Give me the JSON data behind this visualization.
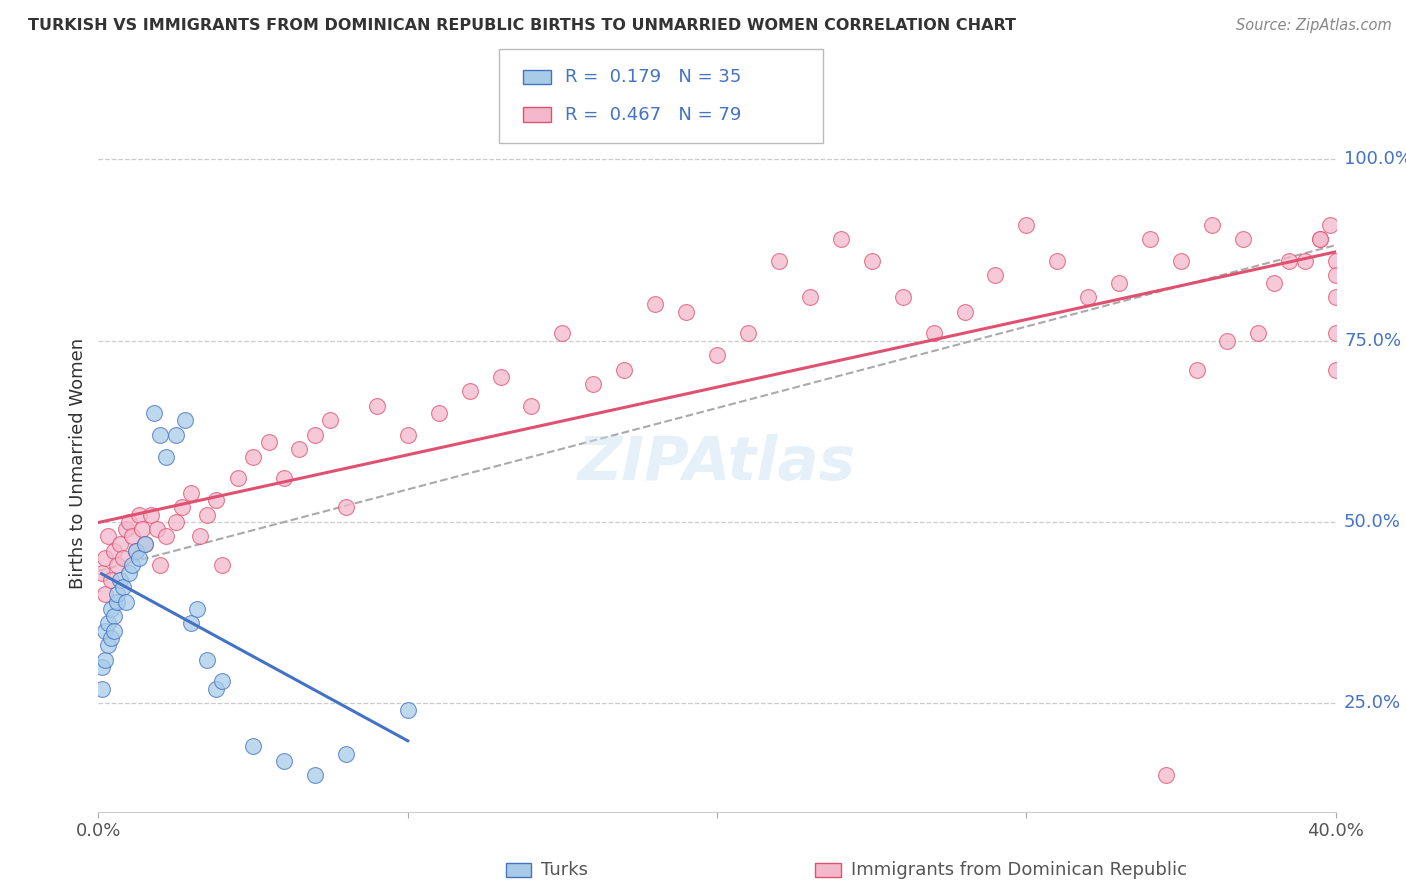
{
  "title": "TURKISH VS IMMIGRANTS FROM DOMINICAN REPUBLIC BIRTHS TO UNMARRIED WOMEN CORRELATION CHART",
  "source": "Source: ZipAtlas.com",
  "ylabel": "Births to Unmarried Women",
  "legend_label_1": "Turks",
  "legend_label_2": "Immigrants from Dominican Republic",
  "R1": 0.179,
  "N1": 35,
  "R2": 0.467,
  "N2": 79,
  "color1": "#a8cce8",
  "color2": "#f4b8cc",
  "line_color1": "#4472c4",
  "line_color2": "#e05070",
  "dash_color": "#aaaaaa",
  "xlim": [
    0.0,
    0.4
  ],
  "ylim": [
    0.1,
    1.06
  ],
  "xtick_vals": [
    0.0,
    0.1,
    0.2,
    0.3,
    0.4
  ],
  "xtick_labels": [
    "0.0%",
    "",
    "",
    "",
    "40.0%"
  ],
  "ytick_vals": [
    0.25,
    0.5,
    0.75,
    1.0
  ],
  "ytick_labels": [
    "25.0%",
    "50.0%",
    "75.0%",
    "100.0%"
  ],
  "background": "#ffffff",
  "grid_color": "#cccccc",
  "watermark": "ZIPAtlas",
  "turks_x": [
    0.001,
    0.001,
    0.002,
    0.002,
    0.003,
    0.003,
    0.004,
    0.004,
    0.005,
    0.005,
    0.006,
    0.006,
    0.007,
    0.008,
    0.009,
    0.01,
    0.011,
    0.012,
    0.013,
    0.015,
    0.018,
    0.02,
    0.022,
    0.025,
    0.028,
    0.03,
    0.032,
    0.035,
    0.038,
    0.04,
    0.05,
    0.06,
    0.07,
    0.08,
    0.1
  ],
  "turks_y": [
    0.3,
    0.27,
    0.35,
    0.31,
    0.33,
    0.36,
    0.34,
    0.38,
    0.37,
    0.35,
    0.39,
    0.4,
    0.42,
    0.41,
    0.39,
    0.43,
    0.44,
    0.46,
    0.45,
    0.47,
    0.65,
    0.62,
    0.59,
    0.62,
    0.64,
    0.36,
    0.38,
    0.31,
    0.27,
    0.28,
    0.19,
    0.17,
    0.15,
    0.18,
    0.24
  ],
  "dr_x": [
    0.001,
    0.002,
    0.002,
    0.003,
    0.004,
    0.005,
    0.006,
    0.007,
    0.008,
    0.009,
    0.01,
    0.011,
    0.012,
    0.013,
    0.014,
    0.015,
    0.017,
    0.019,
    0.02,
    0.022,
    0.025,
    0.027,
    0.03,
    0.033,
    0.035,
    0.038,
    0.04,
    0.045,
    0.05,
    0.055,
    0.06,
    0.065,
    0.07,
    0.075,
    0.08,
    0.09,
    0.1,
    0.11,
    0.12,
    0.13,
    0.14,
    0.15,
    0.16,
    0.17,
    0.18,
    0.19,
    0.2,
    0.21,
    0.22,
    0.23,
    0.24,
    0.25,
    0.26,
    0.27,
    0.28,
    0.29,
    0.3,
    0.31,
    0.32,
    0.33,
    0.34,
    0.35,
    0.36,
    0.37,
    0.38,
    0.39,
    0.395,
    0.398,
    0.4,
    0.4,
    0.4,
    0.4,
    0.4,
    0.395,
    0.385,
    0.375,
    0.365,
    0.355,
    0.345
  ],
  "dr_y": [
    0.43,
    0.45,
    0.4,
    0.48,
    0.42,
    0.46,
    0.44,
    0.47,
    0.45,
    0.49,
    0.5,
    0.48,
    0.46,
    0.51,
    0.49,
    0.47,
    0.51,
    0.49,
    0.44,
    0.48,
    0.5,
    0.52,
    0.54,
    0.48,
    0.51,
    0.53,
    0.44,
    0.56,
    0.59,
    0.61,
    0.56,
    0.6,
    0.62,
    0.64,
    0.52,
    0.66,
    0.62,
    0.65,
    0.68,
    0.7,
    0.66,
    0.76,
    0.69,
    0.71,
    0.8,
    0.79,
    0.73,
    0.76,
    0.86,
    0.81,
    0.89,
    0.86,
    0.81,
    0.76,
    0.79,
    0.84,
    0.91,
    0.86,
    0.81,
    0.83,
    0.89,
    0.86,
    0.91,
    0.89,
    0.83,
    0.86,
    0.89,
    0.91,
    0.86,
    0.81,
    0.84,
    0.76,
    0.71,
    0.89,
    0.86,
    0.76,
    0.75,
    0.71,
    0.15
  ]
}
